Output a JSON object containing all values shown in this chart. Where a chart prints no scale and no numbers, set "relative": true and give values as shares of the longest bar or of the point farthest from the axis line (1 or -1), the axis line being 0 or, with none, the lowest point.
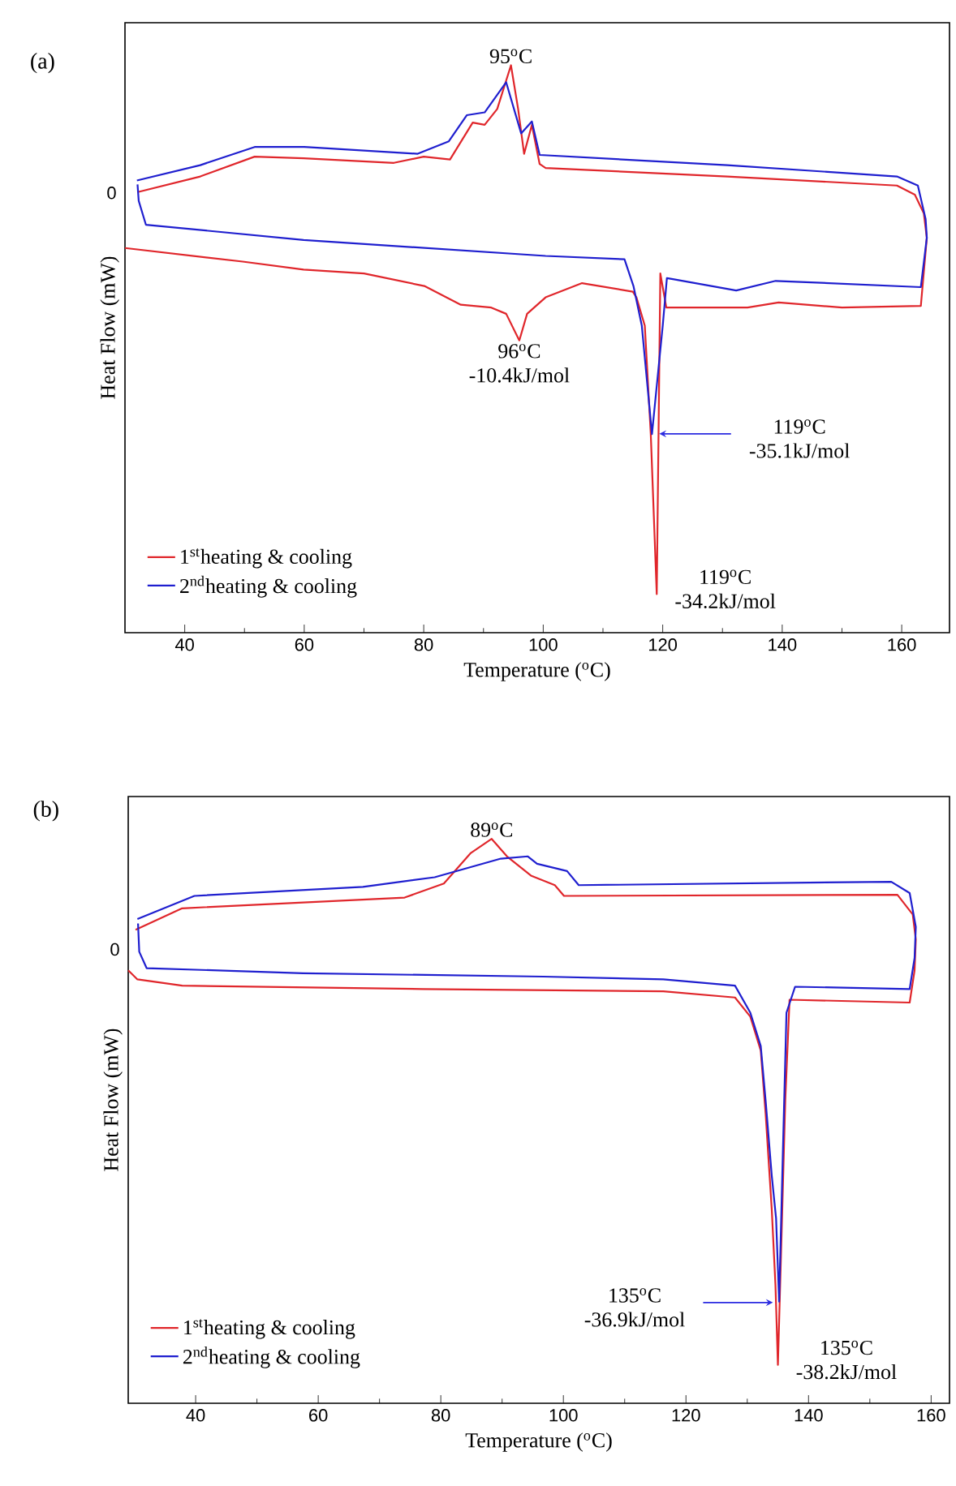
{
  "chart_data": [
    {
      "type": "line",
      "title": "(a)",
      "xlabel": "Temperature ($^{o}$C)",
      "ylabel": "Heat Flow (mW)",
      "relative": true,
      "xlim": [
        30,
        168
      ],
      "xticks": [
        40,
        60,
        80,
        100,
        120,
        140,
        160
      ],
      "legend": "bottom left",
      "series": [
        {
          "name": "1$^{st}$heating & cooling",
          "color": "#e0262b",
          "x": [
            32.3,
            42.6,
            51.7,
            59.9,
            75,
            80,
            84.4,
            88.2,
            90.2,
            92.3,
            94.6,
            95.8,
            96.8,
            98.1,
            99.4,
            100.4,
            130.8,
            159.2,
            162.2,
            163.7,
            164.2,
            163.2,
            150,
            139.4,
            134.2,
            120.6,
            119.6,
            119,
            118,
            117,
            115.6,
            115,
            106.5,
            100.4,
            97.3,
            96,
            93.8,
            91.3,
            86.2,
            80.1,
            70,
            59.9,
            49.7,
            30
          ],
          "values": [
            0.777,
            0.804,
            0.839,
            0.836,
            0.828,
            0.839,
            0.834,
            0.899,
            0.895,
            0.923,
            1.0,
            0.923,
            0.844,
            0.895,
            0.826,
            0.819,
            0.804,
            0.788,
            0.772,
            0.739,
            0.696,
            0.576,
            0.573,
            0.582,
            0.573,
            0.573,
            0.633,
            0.068,
            0.35,
            0.541,
            0.591,
            0.601,
            0.616,
            0.591,
            0.562,
            0.515,
            0.562,
            0.573,
            0.578,
            0.611,
            0.633,
            0.64,
            0.654,
            0.678
          ]
        },
        {
          "name": "2$^{nd}$heating & cooling",
          "color": "#1f1fcf",
          "x": [
            32,
            42.6,
            51.7,
            60,
            79,
            84.2,
            87.2,
            90.2,
            93.8,
            96.3,
            98.1,
            99.4,
            130.8,
            159.2,
            162.7,
            164,
            164.2,
            163.2,
            138.9,
            132.3,
            121.7,
            120.7,
            120,
            118.2,
            116.5,
            115.1,
            113.6,
            100.4,
            59.9,
            33.5,
            32.3,
            32.1
          ],
          "values": [
            0.797,
            0.824,
            0.856,
            0.856,
            0.844,
            0.866,
            0.912,
            0.917,
            0.97,
            0.88,
            0.901,
            0.842,
            0.824,
            0.804,
            0.788,
            0.729,
            0.696,
            0.609,
            0.62,
            0.603,
            0.623,
            0.625,
            0.541,
            0.35,
            0.541,
            0.611,
            0.658,
            0.664,
            0.692,
            0.719,
            0.761,
            0.79
          ]
        }
      ],
      "annotations": [
        "0",
        {
          "text": "95$^{o}$C",
          "x": 94.6,
          "y": 1.0
        },
        {
          "text": "96$^{o}$C -10.4kJ/mol",
          "x": 96,
          "y": 0.515
        },
        "119$^{o}$C -35.1kJ/mol",
        {
          "text": "119$^{o}$C -34.2kJ/mol",
          "x": 119,
          "y": 0.068
        }
      ]
    },
    {
      "type": "line",
      "title": "(b)",
      "xlabel": "Temperature ($^{o}$C)",
      "ylabel": "Heat Flow (mW)",
      "relative": true,
      "xlim": [
        29,
        163
      ],
      "xticks": [
        40,
        60,
        80,
        100,
        120,
        140,
        160
      ],
      "legend": "bottom left",
      "series": [
        {
          "name": "1$^{st}$heating & cooling",
          "color": "#e0262b",
          "x": [
            30.2,
            37.8,
            74.1,
            80.5,
            84.9,
            88.3,
            90.8,
            94.7,
            98.6,
            100.1,
            154.5,
            157,
            157.5,
            157.3,
            156.5,
            136.9,
            136.2,
            135.5,
            135,
            134.6,
            134,
            133,
            132.2,
            130.5,
            128,
            116.3,
            77.1,
            37.8,
            30.5,
            29
          ],
          "values": [
            0.839,
            0.877,
            0.896,
            0.921,
            0.975,
            1.0,
            0.969,
            0.935,
            0.918,
            0.899,
            0.901,
            0.866,
            0.822,
            0.767,
            0.71,
            0.715,
            0.536,
            0.261,
            0.068,
            0.21,
            0.343,
            0.513,
            0.625,
            0.685,
            0.719,
            0.73,
            0.734,
            0.74,
            0.751,
            0.767
          ]
        },
        {
          "name": "2$^{nd}$heating & cooling",
          "color": "#1f1fcf",
          "x": [
            30.5,
            39.8,
            67.3,
            79,
            89.8,
            94.2,
            95.7,
            100.6,
            102.5,
            153.5,
            156.5,
            157.5,
            157.3,
            156.5,
            137.8,
            136.4,
            135.8,
            135.2,
            134.7,
            134,
            133,
            132.2,
            130.5,
            128,
            116.3,
            96.7,
            57.5,
            32,
            30.8,
            30.6
          ],
          "values": [
            0.858,
            0.899,
            0.915,
            0.932,
            0.965,
            0.969,
            0.956,
            0.943,
            0.918,
            0.924,
            0.904,
            0.844,
            0.789,
            0.734,
            0.738,
            0.692,
            0.44,
            0.18,
            0.328,
            0.403,
            0.536,
            0.633,
            0.692,
            0.74,
            0.751,
            0.756,
            0.762,
            0.771,
            0.8,
            0.85
          ]
        }
      ],
      "annotations": [
        "0",
        {
          "text": "89$^{o}$C",
          "x": 88.3,
          "y": 1.0
        },
        "135$^{o}$C -36.9kJ/mol",
        {
          "text": "135$^{o}$C -38.2kJ/mol",
          "x": 135,
          "y": 0.068
        }
      ]
    }
  ]
}
